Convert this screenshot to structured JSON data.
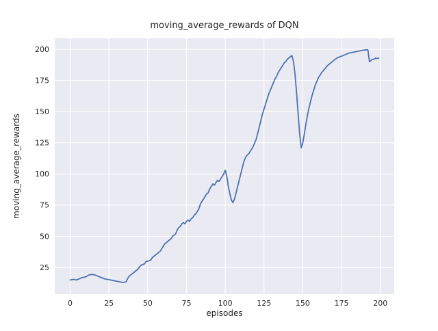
{
  "chart_data": {
    "type": "line",
    "title": "moving_average_rewards of DQN",
    "xlabel": "episodes",
    "ylabel": "moving_average_rewards",
    "x_ticks": [
      0,
      25,
      50,
      75,
      100,
      125,
      150,
      175,
      200
    ],
    "y_ticks": [
      25,
      50,
      75,
      100,
      125,
      150,
      175,
      200
    ],
    "xlim": [
      -9.95,
      208.95
    ],
    "ylim": [
      3.7,
      208.8
    ],
    "grid": true,
    "legend_position": "none",
    "colors": {
      "line": "#4c72b0",
      "plot_background": "#eaeaf2",
      "gridline": "#ffffff",
      "text": "#262626",
      "figure_background": "#ffffff"
    },
    "series": [
      {
        "name": "moving_average_rewards",
        "x": [
          0,
          2,
          4,
          6,
          8,
          10,
          12,
          14,
          16,
          18,
          20,
          22,
          24,
          26,
          28,
          30,
          32,
          34,
          36,
          37,
          38,
          40,
          42,
          44,
          45,
          46,
          48,
          49,
          50,
          52,
          53,
          54,
          56,
          58,
          60,
          61,
          62,
          63,
          64,
          65,
          66,
          68,
          69,
          70,
          71,
          72,
          73,
          74,
          75,
          76,
          77,
          78,
          79,
          80,
          81,
          82,
          83,
          84,
          85,
          86,
          87,
          88,
          89,
          90,
          91,
          92,
          93,
          94,
          95,
          96,
          97,
          98,
          99,
          100,
          101,
          102,
          103,
          104,
          105,
          106,
          107,
          108,
          109,
          110,
          111,
          112,
          113,
          114,
          115,
          116,
          117,
          118,
          119,
          120,
          121,
          122,
          123,
          124,
          125,
          126,
          127,
          128,
          129,
          130,
          131,
          132,
          133,
          134,
          135,
          136,
          137,
          138,
          139,
          140,
          141,
          142,
          143,
          144,
          145,
          146,
          147,
          148,
          149,
          150,
          151,
          152,
          153,
          154,
          155,
          156,
          157,
          158,
          159,
          160,
          162,
          164,
          166,
          168,
          170,
          172,
          174,
          176,
          178,
          180,
          182,
          184,
          186,
          188,
          190,
          192,
          193,
          194,
          195,
          196,
          197,
          198,
          199
        ],
        "y": [
          15,
          15.5,
          15,
          16,
          17,
          17.5,
          19,
          19.5,
          19,
          18,
          17,
          16,
          15.5,
          15,
          14.5,
          14,
          13.5,
          13,
          13.5,
          16,
          18,
          20,
          22,
          24,
          26,
          27,
          28,
          30,
          30,
          31,
          33,
          34,
          36,
          38,
          42,
          44,
          45,
          46,
          47,
          48,
          50,
          52,
          55,
          57,
          58,
          60,
          61,
          60,
          62,
          63,
          62,
          64,
          65,
          67,
          68,
          70,
          72,
          76,
          78,
          80,
          82,
          84,
          85,
          88,
          90,
          92,
          91,
          93,
          95,
          94,
          96,
          98,
          100,
          103,
          98,
          90,
          84,
          79,
          77,
          80,
          85,
          90,
          95,
          100,
          105,
          110,
          113,
          115,
          116,
          118,
          120,
          122,
          125,
          128,
          133,
          138,
          143,
          148,
          152,
          156,
          160,
          164,
          167,
          170,
          173,
          176,
          178,
          181,
          183,
          185,
          187,
          189,
          190,
          192,
          193,
          194,
          195,
          190,
          180,
          165,
          148,
          132,
          121,
          125,
          132,
          140,
          147,
          153,
          158,
          163,
          167,
          171,
          174,
          177,
          181,
          184,
          187,
          189,
          191,
          193,
          194,
          195,
          196,
          197,
          197.5,
          198,
          198.5,
          199,
          199.5,
          199.5,
          190,
          191,
          192,
          192,
          193,
          192.5,
          193
        ]
      }
    ]
  }
}
